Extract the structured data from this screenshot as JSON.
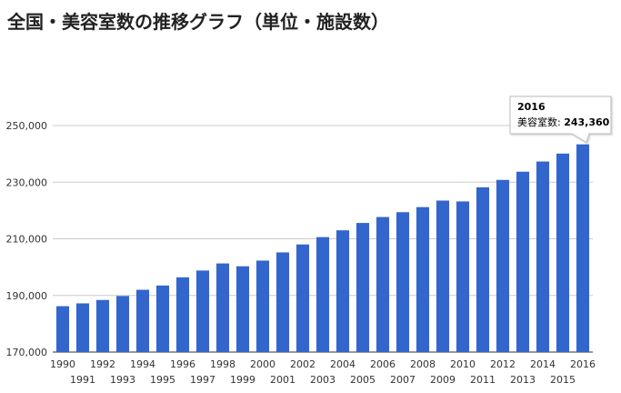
{
  "chart_data": {
    "type": "bar",
    "title": "全国・美容室数の推移グラフ（単位・施設数）",
    "xlabel": "",
    "ylabel": "",
    "categories": [
      "1990",
      "1991",
      "1992",
      "1993",
      "1994",
      "1995",
      "1996",
      "1997",
      "1998",
      "1999",
      "2000",
      "2001",
      "2002",
      "2003",
      "2004",
      "2005",
      "2006",
      "2007",
      "2008",
      "2009",
      "2010",
      "2011",
      "2012",
      "2013",
      "2014",
      "2015",
      "2016"
    ],
    "series": [
      {
        "values": [
          186200,
          187200,
          188400,
          189800,
          192000,
          193500,
          196400,
          198800,
          201300,
          200300,
          202300,
          205200,
          208000,
          210600,
          213000,
          215600,
          217700,
          219400,
          221200,
          223500,
          223200,
          228200,
          230800,
          233700,
          237300,
          240100,
          243360
        ]
      }
    ],
    "ylim": [
      170000,
      250000
    ],
    "yticks": [
      "170,000",
      "190,000",
      "210,000",
      "230,000",
      "250,000"
    ],
    "grid": true,
    "bar_color": "#3366cc",
    "tooltip": {
      "year": "2016",
      "label": "美容室数:",
      "value": "243,360"
    }
  }
}
